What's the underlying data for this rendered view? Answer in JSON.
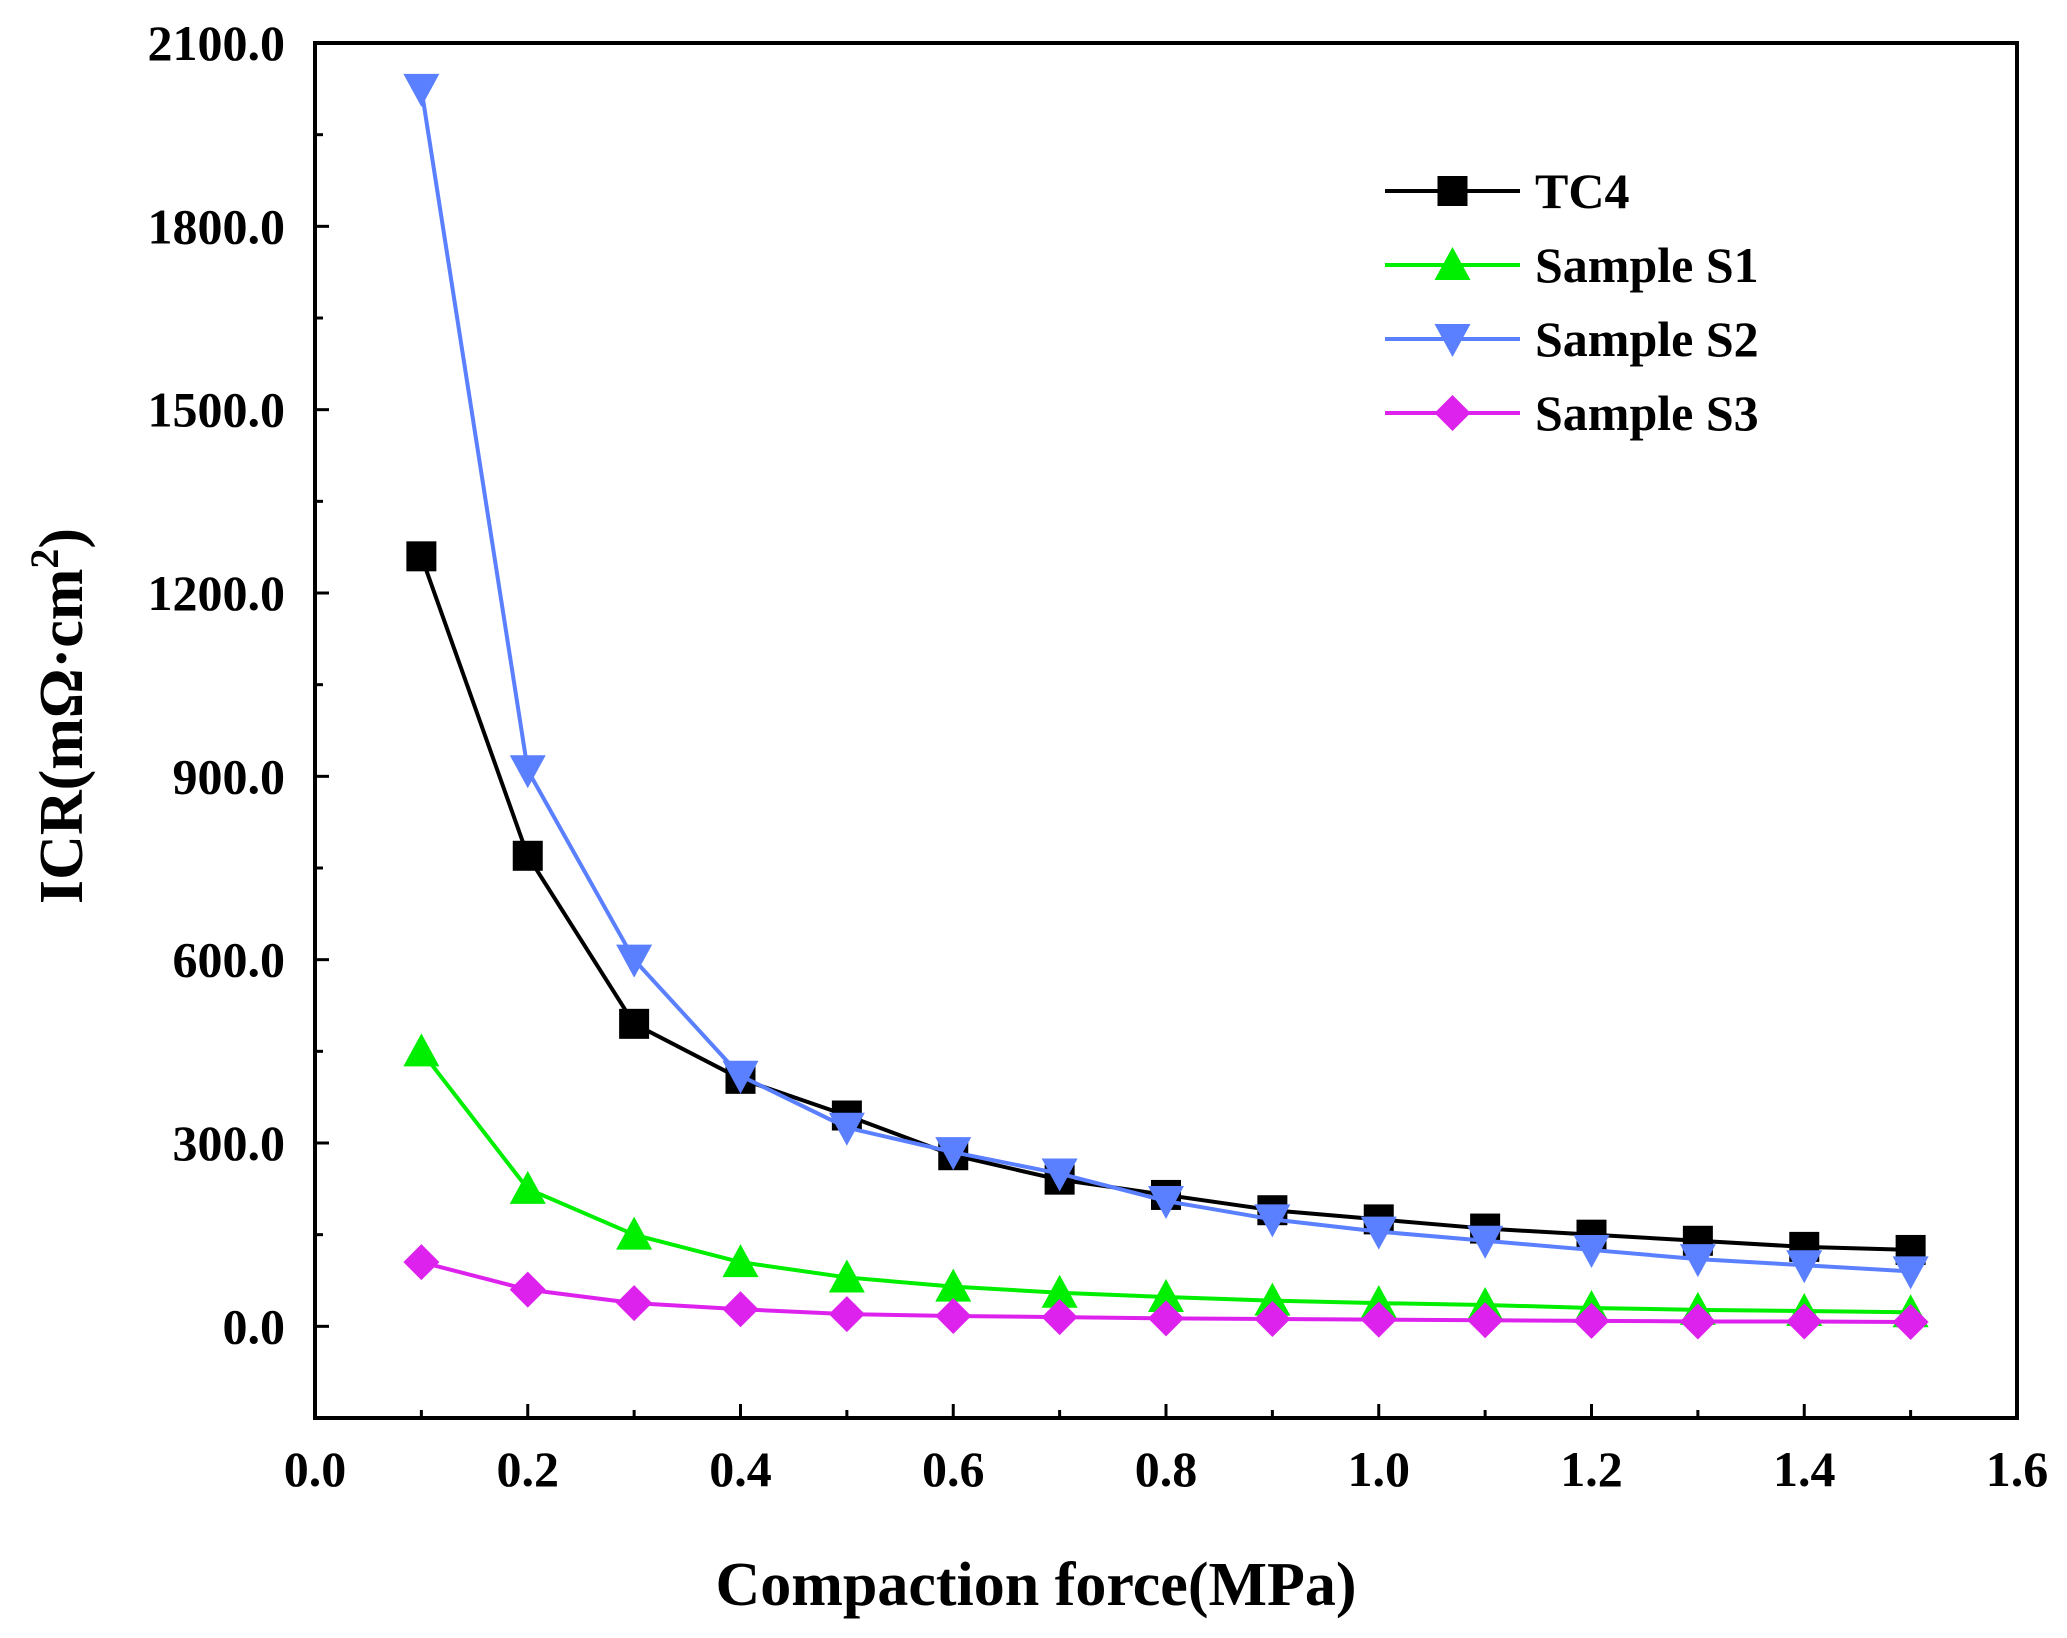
{
  "chart_data": {
    "type": "line",
    "title": "",
    "xlabel": "Compaction force(MPa)",
    "ylabel_main": "ICR(mΩ·cm",
    "ylabel_sup": "2",
    "ylabel_close": ")",
    "xlim": [
      0.0,
      1.6
    ],
    "ylim": [
      -150,
      2100
    ],
    "xticks": [
      0.0,
      0.2,
      0.4,
      0.6,
      0.8,
      1.0,
      1.2,
      1.4,
      1.6
    ],
    "xtick_labels": [
      "0.0",
      "0.2",
      "0.4",
      "0.6",
      "0.8",
      "1.0",
      "1.2",
      "1.4",
      "1.6"
    ],
    "yticks": [
      0,
      300,
      600,
      900,
      1200,
      1500,
      1800,
      2100
    ],
    "ytick_labels": [
      "0.0",
      "300.0",
      "600.0",
      "900.0",
      "1200.0",
      "1500.0",
      "1800.0",
      "2100.0"
    ],
    "grid": false,
    "legend_position": "top-right",
    "x": [
      0.1,
      0.2,
      0.3,
      0.4,
      0.5,
      0.6,
      0.7,
      0.8,
      0.9,
      1.0,
      1.1,
      1.2,
      1.3,
      1.4,
      1.5
    ],
    "series": [
      {
        "name": "TC4",
        "color": "#000000",
        "marker": "square",
        "values": [
          1260,
          770,
          495,
          405,
          345,
          280,
          240,
          215,
          190,
          175,
          160,
          150,
          140,
          130,
          125
        ]
      },
      {
        "name": "Sample S1",
        "color": "#00ee00",
        "marker": "triangle-up",
        "values": [
          450,
          225,
          150,
          105,
          80,
          65,
          55,
          48,
          42,
          38,
          35,
          30,
          27,
          25,
          23
        ]
      },
      {
        "name": "Sample S2",
        "color": "#5a7fff",
        "marker": "triangle-down",
        "values": [
          2025,
          910,
          600,
          410,
          325,
          285,
          250,
          205,
          175,
          155,
          140,
          125,
          110,
          100,
          90
        ]
      },
      {
        "name": "Sample S3",
        "color": "#dd22ee",
        "marker": "diamond",
        "values": [
          105,
          60,
          38,
          28,
          20,
          17,
          15,
          13,
          12,
          11,
          10,
          9,
          8,
          8,
          7
        ]
      }
    ]
  }
}
